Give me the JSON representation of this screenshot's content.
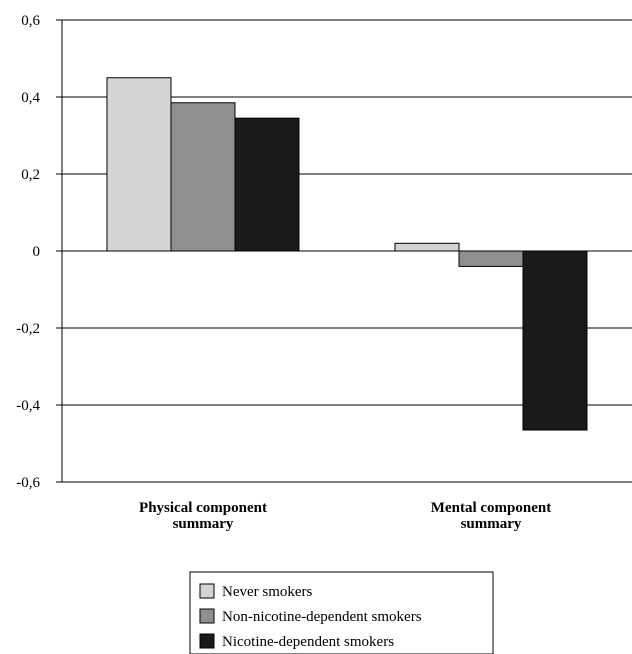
{
  "chart_data": {
    "type": "bar",
    "categories": [
      [
        "Physical component",
        "summary"
      ],
      [
        "Mental component",
        "summary"
      ]
    ],
    "series": [
      {
        "name": "Never smokers",
        "values": [
          0.45,
          0.02
        ],
        "color": "#d4d4d4"
      },
      {
        "name": "Non-nicotine-dependent smokers",
        "values": [
          0.385,
          -0.04
        ],
        "color": "#8f8f8f"
      },
      {
        "name": "Nicotine-dependent smokers",
        "values": [
          0.345,
          -0.465
        ],
        "color": "#1a1a1a"
      }
    ],
    "yticks": [
      "0,6",
      "0,4",
      "0,2",
      "0",
      "-0,2",
      "-0,4",
      "-0,6"
    ],
    "ytick_values": [
      0.6,
      0.4,
      0.2,
      0,
      -0.2,
      -0.4,
      -0.6
    ],
    "ylim": [
      -0.6,
      0.6
    ],
    "grid": true,
    "legend": "bottom-center",
    "title": "",
    "xlabel": "",
    "ylabel": ""
  }
}
